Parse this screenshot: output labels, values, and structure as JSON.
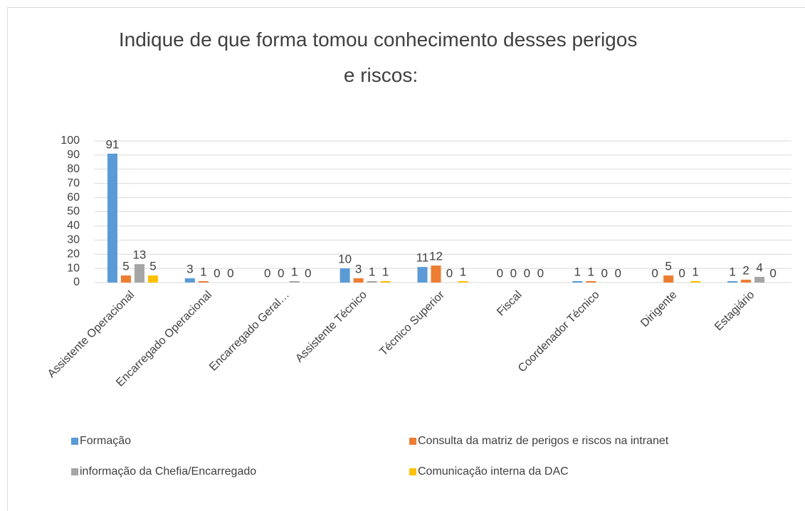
{
  "chart_data": {
    "type": "bar",
    "title": "Indique de que forma tomou conhecimento desses perigos e riscos:",
    "categories": [
      "Assistente Operacional",
      "Encarregado Operacional",
      "Encarregado Geral…",
      "Assistente Técnico",
      "Técnico Superior",
      "Fiscal",
      "Coordenador Técnico",
      "Dirigente",
      "Estagiário"
    ],
    "series": [
      {
        "name": "Formação",
        "color": "#5b9bd5",
        "values": [
          91,
          3,
          0,
          10,
          11,
          0,
          1,
          0,
          1
        ]
      },
      {
        "name": "Consulta da matriz de perigos e riscos na intranet",
        "color": "#ed7d31",
        "values": [
          5,
          1,
          0,
          3,
          12,
          0,
          1,
          5,
          2
        ]
      },
      {
        "name": "informação da Chefia/Encarregado",
        "color": "#a5a5a5",
        "values": [
          13,
          0,
          1,
          1,
          0,
          0,
          0,
          0,
          4
        ]
      },
      {
        "name": "Comunicação interna da DAC",
        "color": "#ffc000",
        "values": [
          5,
          0,
          0,
          1,
          1,
          0,
          0,
          1,
          0
        ]
      }
    ],
    "ylim": [
      0,
      100
    ],
    "yticks": [
      0,
      10,
      20,
      30,
      40,
      50,
      60,
      70,
      80,
      90,
      100
    ],
    "grid": true,
    "legend": "bottom"
  }
}
